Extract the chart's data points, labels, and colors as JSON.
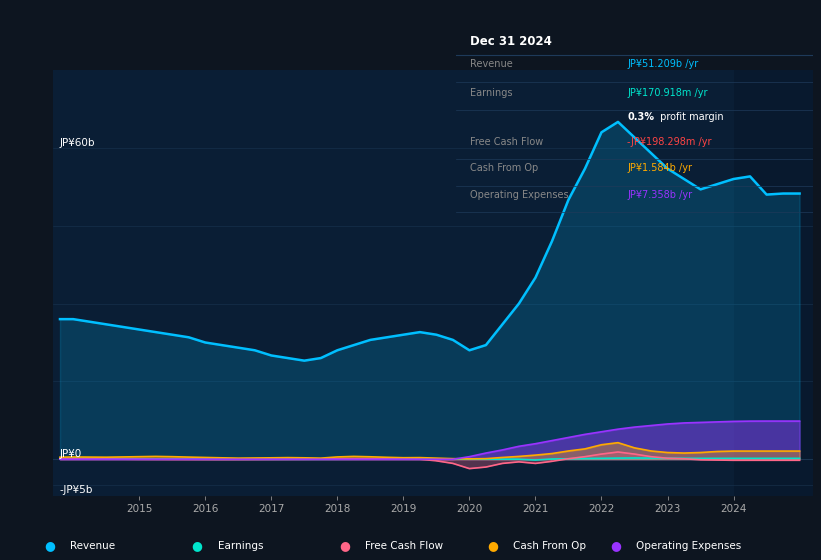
{
  "bg_color": "#0d1520",
  "chart_bg": "#0a1e35",
  "grid_color": "#1a3550",
  "tooltip_title": "Dec 31 2024",
  "ylabel_top": "JP¥60b",
  "ylabel_zero": "JP¥0",
  "ylabel_neg": "-JP¥5b",
  "ylim": [
    -7000000000.0,
    75000000000.0
  ],
  "years_x": [
    2013.8,
    2014.0,
    2014.25,
    2014.5,
    2014.75,
    2015.0,
    2015.25,
    2015.5,
    2015.75,
    2016.0,
    2016.25,
    2016.5,
    2016.75,
    2017.0,
    2017.25,
    2017.5,
    2017.75,
    2018.0,
    2018.25,
    2018.5,
    2018.75,
    2019.0,
    2019.25,
    2019.5,
    2019.75,
    2020.0,
    2020.25,
    2020.5,
    2020.75,
    2021.0,
    2021.25,
    2021.5,
    2021.75,
    2022.0,
    2022.25,
    2022.5,
    2022.75,
    2023.0,
    2023.25,
    2023.5,
    2023.75,
    2024.0,
    2024.25,
    2024.5,
    2024.75,
    2025.0
  ],
  "revenue": [
    27000000000.0,
    27000000000.0,
    26500000000.0,
    26000000000.0,
    25500000000.0,
    25000000000.0,
    24500000000.0,
    24000000000.0,
    23500000000.0,
    22500000000.0,
    22000000000.0,
    21500000000.0,
    21000000000.0,
    20000000000.0,
    19500000000.0,
    19000000000.0,
    19500000000.0,
    21000000000.0,
    22000000000.0,
    23000000000.0,
    23500000000.0,
    24000000000.0,
    24500000000.0,
    24000000000.0,
    23000000000.0,
    21000000000.0,
    22000000000.0,
    26000000000.0,
    30000000000.0,
    35000000000.0,
    42000000000.0,
    50000000000.0,
    56000000000.0,
    63000000000.0,
    65000000000.0,
    62000000000.0,
    59000000000.0,
    56000000000.0,
    54000000000.0,
    52000000000.0,
    53000000000.0,
    54000000000.0,
    54500000000.0,
    51000000000.0,
    51200000000.0,
    51200000000.0
  ],
  "earnings": [
    200000000.0,
    250000000.0,
    200000000.0,
    150000000.0,
    100000000.0,
    80000000.0,
    60000000.0,
    40000000.0,
    20000000.0,
    10000000.0,
    5000000.0,
    3000000.0,
    2000000.0,
    1000000.0,
    1000000.0,
    2000000.0,
    5000000.0,
    10000000.0,
    15000000.0,
    20000000.0,
    25000000.0,
    30000000.0,
    25000000.0,
    20000000.0,
    15000000.0,
    10000000.0,
    5000000.0,
    3000000.0,
    1000000.0,
    -150000000.0,
    50000000.0,
    100000000.0,
    150000000.0,
    180000000.0,
    220000000.0,
    250000000.0,
    220000000.0,
    200000000.0,
    180000000.0,
    170000000.0,
    170000000.0,
    170000000.0,
    171000000.0,
    171000000.0,
    171000000.0,
    171000000.0
  ],
  "free_cash_flow": [
    50000000.0,
    80000000.0,
    60000000.0,
    40000000.0,
    20000000.0,
    0.0,
    -10000000.0,
    -20000000.0,
    -25000000.0,
    -30000000.0,
    -35000000.0,
    -30000000.0,
    -20000000.0,
    -10000000.0,
    0.0,
    10000000.0,
    20000000.0,
    80000000.0,
    120000000.0,
    90000000.0,
    50000000.0,
    20000000.0,
    10000000.0,
    -300000000.0,
    -800000000.0,
    -1800000000.0,
    -1500000000.0,
    -800000000.0,
    -500000000.0,
    -800000000.0,
    -400000000.0,
    100000000.0,
    500000000.0,
    1000000000.0,
    1400000000.0,
    1000000000.0,
    500000000.0,
    200000000.0,
    100000000.0,
    -100000000.0,
    -150000000.0,
    -200000000.0,
    -198000000.0,
    -198000000.0,
    -198000000.0,
    -198000000.0
  ],
  "cash_from_op": [
    400000000.0,
    450000000.0,
    420000000.0,
    400000000.0,
    450000000.0,
    500000000.0,
    550000000.0,
    500000000.0,
    420000000.0,
    350000000.0,
    280000000.0,
    220000000.0,
    250000000.0,
    280000000.0,
    320000000.0,
    280000000.0,
    220000000.0,
    450000000.0,
    550000000.0,
    480000000.0,
    380000000.0,
    300000000.0,
    320000000.0,
    220000000.0,
    120000000.0,
    80000000.0,
    120000000.0,
    350000000.0,
    550000000.0,
    800000000.0,
    1100000000.0,
    1600000000.0,
    2000000000.0,
    2800000000.0,
    3200000000.0,
    2200000000.0,
    1600000000.0,
    1300000000.0,
    1200000000.0,
    1300000000.0,
    1500000000.0,
    1580000000.0,
    1580000000.0,
    1580000000.0,
    1580000000.0,
    1580000000.0
  ],
  "op_expenses": [
    0.0,
    0.0,
    0.0,
    0.0,
    0.0,
    0.0,
    0.0,
    0.0,
    0.0,
    0.0,
    0.0,
    0.0,
    0.0,
    0.0,
    0.0,
    0.0,
    0.0,
    0.0,
    0.0,
    0.0,
    0.0,
    0.0,
    0.0,
    0.0,
    0.0,
    500000000.0,
    1200000000.0,
    1800000000.0,
    2500000000.0,
    3000000000.0,
    3600000000.0,
    4200000000.0,
    4800000000.0,
    5300000000.0,
    5800000000.0,
    6200000000.0,
    6500000000.0,
    6800000000.0,
    7000000000.0,
    7100000000.0,
    7200000000.0,
    7300000000.0,
    7350000000.0,
    7360000000.0,
    7358000000.0,
    7358000000.0
  ],
  "revenue_color": "#00bfff",
  "earnings_color": "#00e5cc",
  "fcf_color": "#ff6688",
  "cashop_color": "#ffaa00",
  "opex_color": "#9933ff",
  "legend_items": [
    {
      "label": "Revenue",
      "color": "#00bfff"
    },
    {
      "label": "Earnings",
      "color": "#00e5cc"
    },
    {
      "label": "Free Cash Flow",
      "color": "#ff6688"
    },
    {
      "label": "Cash From Op",
      "color": "#ffaa00"
    },
    {
      "label": "Operating Expenses",
      "color": "#9933ff"
    }
  ],
  "xlim": [
    2013.7,
    2025.2
  ],
  "xticks": [
    2015,
    2016,
    2017,
    2018,
    2019,
    2020,
    2021,
    2022,
    2023,
    2024
  ],
  "highlight_x_start": 2024.0,
  "highlight_x_end": 2025.2
}
